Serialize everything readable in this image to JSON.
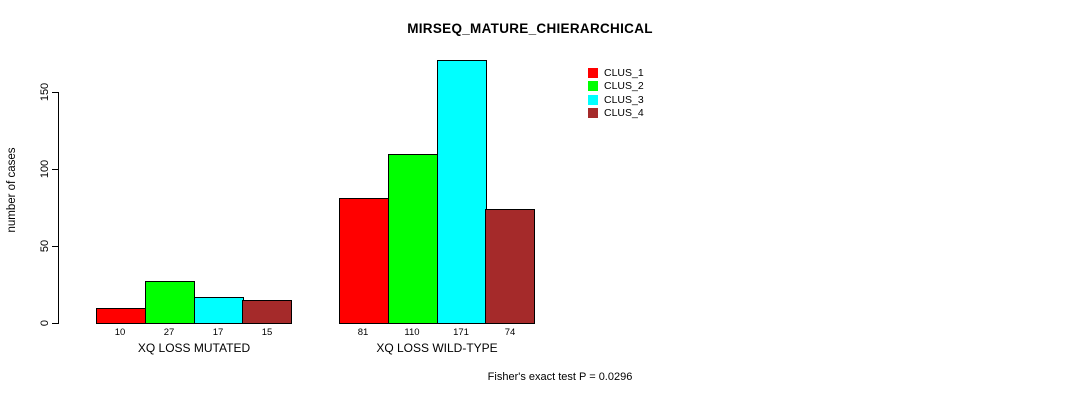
{
  "title": "MIRSEQ_MATURE_CHIERARCHICAL",
  "ylabel": "number of cases",
  "footnote": "Fisher's exact test P = 0.0296",
  "chart_data": {
    "type": "bar",
    "title": "MIRSEQ_MATURE_CHIERARCHICAL",
    "xlabel": "",
    "ylabel": "number of cases",
    "categories": [
      "XQ LOSS MUTATED",
      "XQ LOSS WILD-TYPE"
    ],
    "series": [
      {
        "name": "CLUS_1",
        "color": "#FF0000",
        "values": [
          10,
          81
        ]
      },
      {
        "name": "CLUS_2",
        "color": "#00FF00",
        "values": [
          27,
          110
        ]
      },
      {
        "name": "CLUS_3",
        "color": "#00FFFF",
        "values": [
          17,
          171
        ]
      },
      {
        "name": "CLUS_4",
        "color": "#A52A2A",
        "values": [
          15,
          74
        ]
      }
    ],
    "yticks": [
      0,
      50,
      100,
      150
    ],
    "ylim": [
      0,
      175
    ],
    "grid": false,
    "legend_position": "top-right",
    "bar_value_labels": true,
    "annotation": "Fisher's exact test P = 0.0296"
  }
}
